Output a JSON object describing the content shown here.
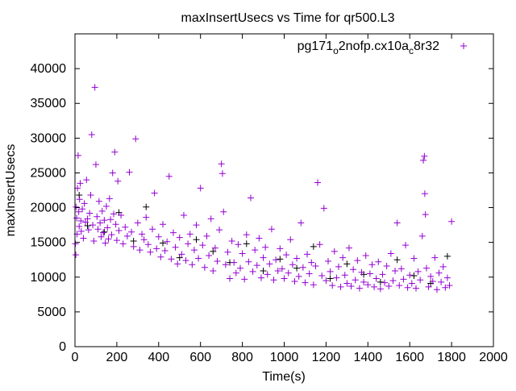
{
  "chart_data": {
    "type": "scatter",
    "title": "maxInsertUsecs vs Time for qr500.L3",
    "xlabel": "Time(s)",
    "ylabel": "maxInsertUsecs",
    "xlim": [
      0,
      2000
    ],
    "ylim": [
      0,
      45000
    ],
    "xticks": [
      0,
      200,
      400,
      600,
      800,
      1000,
      1200,
      1400,
      1600,
      1800,
      2000
    ],
    "yticks": [
      0,
      5000,
      10000,
      15000,
      20000,
      25000,
      30000,
      35000,
      40000
    ],
    "grid": false,
    "legend_position": "top-right",
    "series": [
      {
        "name": "pg171_o2nofp.cx10a_c8r32",
        "color": "#9400d3",
        "marker": "plus",
        "points": [
          [
            2,
            14800
          ],
          [
            4,
            13200
          ],
          [
            5,
            20100
          ],
          [
            8,
            18500
          ],
          [
            10,
            16200
          ],
          [
            12,
            22800
          ],
          [
            15,
            27500
          ],
          [
            18,
            19400
          ],
          [
            20,
            17300
          ],
          [
            22,
            21200
          ],
          [
            25,
            23500
          ],
          [
            28,
            18100
          ],
          [
            30,
            16600
          ],
          [
            35,
            19800
          ],
          [
            40,
            15600
          ],
          [
            45,
            20600
          ],
          [
            50,
            17900
          ],
          [
            55,
            24000
          ],
          [
            60,
            18400
          ],
          [
            65,
            16800
          ],
          [
            70,
            19200
          ],
          [
            75,
            21800
          ],
          [
            80,
            30500
          ],
          [
            85,
            17500
          ],
          [
            90,
            15200
          ],
          [
            95,
            37300
          ],
          [
            100,
            26200
          ],
          [
            105,
            18700
          ],
          [
            110,
            16900
          ],
          [
            115,
            20900
          ],
          [
            120,
            17800
          ],
          [
            125,
            15800
          ],
          [
            130,
            19500
          ],
          [
            135,
            16400
          ],
          [
            140,
            18200
          ],
          [
            145,
            14900
          ],
          [
            150,
            20200
          ],
          [
            155,
            17100
          ],
          [
            160,
            15500
          ],
          [
            165,
            21300
          ],
          [
            170,
            18300
          ],
          [
            175,
            16100
          ],
          [
            180,
            25000
          ],
          [
            185,
            19100
          ],
          [
            190,
            28000
          ],
          [
            195,
            17600
          ],
          [
            200,
            15300
          ],
          [
            205,
            23800
          ],
          [
            210,
            16700
          ],
          [
            220,
            18900
          ],
          [
            230,
            14800
          ],
          [
            240,
            17200
          ],
          [
            250,
            15900
          ],
          [
            260,
            25100
          ],
          [
            270,
            16500
          ],
          [
            280,
            14400
          ],
          [
            290,
            29900
          ],
          [
            300,
            17800
          ],
          [
            310,
            13900
          ],
          [
            320,
            16200
          ],
          [
            330,
            15400
          ],
          [
            340,
            18600
          ],
          [
            350,
            14700
          ],
          [
            360,
            13600
          ],
          [
            370,
            16900
          ],
          [
            380,
            22100
          ],
          [
            390,
            14100
          ],
          [
            400,
            15800
          ],
          [
            410,
            12900
          ],
          [
            420,
            17600
          ],
          [
            430,
            13800
          ],
          [
            440,
            15100
          ],
          [
            450,
            24500
          ],
          [
            460,
            12600
          ],
          [
            470,
            16400
          ],
          [
            480,
            14300
          ],
          [
            490,
            11900
          ],
          [
            500,
            15700
          ],
          [
            510,
            13300
          ],
          [
            520,
            18900
          ],
          [
            530,
            12400
          ],
          [
            540,
            14800
          ],
          [
            550,
            16200
          ],
          [
            560,
            11800
          ],
          [
            570,
            13900
          ],
          [
            580,
            17500
          ],
          [
            590,
            12700
          ],
          [
            600,
            22800
          ],
          [
            610,
            14600
          ],
          [
            620,
            11400
          ],
          [
            630,
            15900
          ],
          [
            640,
            13100
          ],
          [
            650,
            18400
          ],
          [
            660,
            10900
          ],
          [
            670,
            14200
          ],
          [
            680,
            12300
          ],
          [
            690,
            16800
          ],
          [
            700,
            26300
          ],
          [
            705,
            24900
          ],
          [
            710,
            19400
          ],
          [
            720,
            11800
          ],
          [
            730,
            13600
          ],
          [
            740,
            9800
          ],
          [
            750,
            15200
          ],
          [
            760,
            12100
          ],
          [
            770,
            10600
          ],
          [
            780,
            14700
          ],
          [
            790,
            11300
          ],
          [
            800,
            13400
          ],
          [
            810,
            9700
          ],
          [
            820,
            16100
          ],
          [
            830,
            12200
          ],
          [
            840,
            21400
          ],
          [
            850,
            10800
          ],
          [
            860,
            13900
          ],
          [
            870,
            11700
          ],
          [
            880,
            15600
          ],
          [
            890,
            9900
          ],
          [
            900,
            12800
          ],
          [
            910,
            14300
          ],
          [
            920,
            10400
          ],
          [
            930,
            11900
          ],
          [
            940,
            16900
          ],
          [
            950,
            9600
          ],
          [
            960,
            12500
          ],
          [
            970,
            10900
          ],
          [
            980,
            14100
          ],
          [
            990,
            11200
          ],
          [
            1000,
            9800
          ],
          [
            1010,
            13200
          ],
          [
            1020,
            10600
          ],
          [
            1030,
            15400
          ],
          [
            1040,
            11800
          ],
          [
            1050,
            9400
          ],
          [
            1060,
            12700
          ],
          [
            1070,
            10100
          ],
          [
            1080,
            17800
          ],
          [
            1090,
            11400
          ],
          [
            1100,
            9200
          ],
          [
            1110,
            13300
          ],
          [
            1120,
            10500
          ],
          [
            1130,
            12100
          ],
          [
            1140,
            8900
          ],
          [
            1150,
            11600
          ],
          [
            1160,
            23600
          ],
          [
            1170,
            14700
          ],
          [
            1180,
            10200
          ],
          [
            1190,
            19900
          ],
          [
            1200,
            9500
          ],
          [
            1210,
            12300
          ],
          [
            1220,
            10800
          ],
          [
            1230,
            8800
          ],
          [
            1240,
            13700
          ],
          [
            1250,
            9900
          ],
          [
            1260,
            11500
          ],
          [
            1270,
            8600
          ],
          [
            1280,
            12800
          ],
          [
            1290,
            10300
          ],
          [
            1300,
            9100
          ],
          [
            1310,
            14200
          ],
          [
            1320,
            8700
          ],
          [
            1330,
            11100
          ],
          [
            1340,
            9600
          ],
          [
            1350,
            12400
          ],
          [
            1360,
            8400
          ],
          [
            1370,
            10700
          ],
          [
            1380,
            9300
          ],
          [
            1390,
            13100
          ],
          [
            1400,
            8900
          ],
          [
            1410,
            10500
          ],
          [
            1420,
            11800
          ],
          [
            1430,
            8600
          ],
          [
            1440,
            9800
          ],
          [
            1450,
            12200
          ],
          [
            1460,
            8300
          ],
          [
            1470,
            10400
          ],
          [
            1480,
            9200
          ],
          [
            1490,
            11600
          ],
          [
            1500,
            8700
          ],
          [
            1510,
            13400
          ],
          [
            1520,
            9500
          ],
          [
            1530,
            10900
          ],
          [
            1540,
            17800
          ],
          [
            1550,
            8800
          ],
          [
            1560,
            11200
          ],
          [
            1570,
            9700
          ],
          [
            1580,
            14600
          ],
          [
            1590,
            8500
          ],
          [
            1600,
            10300
          ],
          [
            1610,
            9100
          ],
          [
            1620,
            12700
          ],
          [
            1630,
            8400
          ],
          [
            1640,
            10800
          ],
          [
            1650,
            9600
          ],
          [
            1660,
            15900
          ],
          [
            1665,
            26800
          ],
          [
            1670,
            27400
          ],
          [
            1672,
            22000
          ],
          [
            1675,
            19000
          ],
          [
            1680,
            11300
          ],
          [
            1690,
            8600
          ],
          [
            1700,
            10100
          ],
          [
            1710,
            9400
          ],
          [
            1720,
            12800
          ],
          [
            1730,
            8200
          ],
          [
            1740,
            10600
          ],
          [
            1750,
            9300
          ],
          [
            1760,
            11500
          ],
          [
            1770,
            8500
          ],
          [
            1780,
            9900
          ],
          [
            1790,
            8800
          ],
          [
            1800,
            18000
          ]
        ]
      },
      {
        "name": "",
        "color": "#000000",
        "marker": "plus",
        "points": [
          [
            20,
            21800
          ],
          [
            60,
            17400
          ],
          [
            140,
            16500
          ],
          [
            210,
            19300
          ],
          [
            280,
            15200
          ],
          [
            340,
            20100
          ],
          [
            420,
            14900
          ],
          [
            500,
            12800
          ],
          [
            580,
            15400
          ],
          [
            660,
            13700
          ],
          [
            740,
            12100
          ],
          [
            820,
            14800
          ],
          [
            900,
            10900
          ],
          [
            980,
            12600
          ],
          [
            1060,
            11300
          ],
          [
            1140,
            14400
          ],
          [
            1220,
            9800
          ],
          [
            1300,
            11900
          ],
          [
            1380,
            10400
          ],
          [
            1460,
            9300
          ],
          [
            1540,
            12500
          ],
          [
            1620,
            10200
          ],
          [
            1700,
            9100
          ],
          [
            1780,
            13000
          ]
        ]
      }
    ]
  }
}
